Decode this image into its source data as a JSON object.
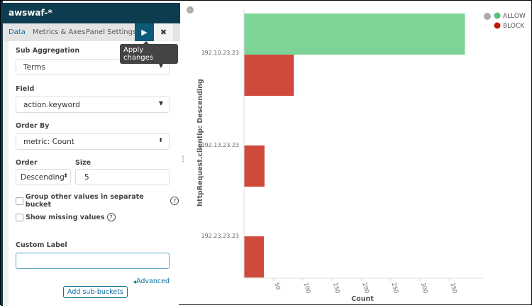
{
  "sidebar": {
    "title": "awswaf-*",
    "tabs": [
      {
        "label": "Data"
      },
      {
        "label": "Metrics & Axes"
      },
      {
        "label": "Panel Settings"
      }
    ],
    "apply_tooltip": "Apply changes",
    "sub_aggregation": {
      "label": "Sub Aggregation",
      "value": "Terms"
    },
    "field": {
      "label": "Field",
      "value": "action.keyword"
    },
    "order_by": {
      "label": "Order By",
      "value": "metric: Count"
    },
    "order": {
      "label": "Order",
      "value": "Descending"
    },
    "size": {
      "label": "Size",
      "value": "5"
    },
    "group_other": {
      "label": "Group other values in separate bucket",
      "checked": false
    },
    "show_missing": {
      "label": "Show missing values",
      "checked": false
    },
    "custom_label": {
      "label": "Custom Label",
      "value": ""
    },
    "advanced": "Advanced",
    "add_sub_buckets": "Add sub-buckets"
  },
  "chart_data": {
    "type": "bar",
    "orientation": "horizontal",
    "categories": [
      "192.10.23.23",
      "192.13.23.23",
      "192.23.23.23"
    ],
    "series": [
      {
        "name": "ALLOW",
        "color": "#7dd497",
        "values": [
          377,
          null,
          null
        ]
      },
      {
        "name": "BLOCK",
        "color": "#d0493d",
        "values": [
          85,
          35,
          34
        ]
      }
    ],
    "xlabel": "Count",
    "ylabel": "httpRequest.clientip: Descending",
    "xticks": [
      50,
      100,
      150,
      200,
      250,
      300,
      350
    ],
    "xlim": [
      0,
      405
    ],
    "legend": "top-right",
    "grid": false
  }
}
